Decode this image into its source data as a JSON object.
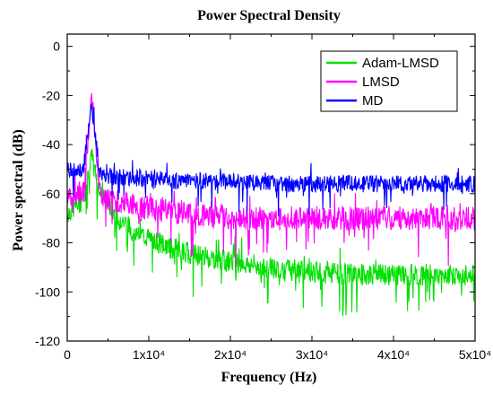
{
  "chart_data": {
    "type": "line",
    "title": "Power Spectral Density",
    "xlabel": "Frequency (Hz)",
    "ylabel": "Power spectral (dB)",
    "xlim": [
      0,
      50000
    ],
    "ylim": [
      -120,
      5
    ],
    "x_ticks": [
      0,
      10000,
      20000,
      30000,
      40000,
      50000
    ],
    "x_tick_labels": [
      "0",
      "1x10⁴",
      "2x10⁴",
      "3x10⁴",
      "4x10⁴",
      "5x10⁴"
    ],
    "y_ticks": [
      0,
      -20,
      -40,
      -60,
      -80,
      -100,
      -120
    ],
    "y_tick_labels": [
      "0",
      "-20",
      "-40",
      "-60",
      "-80",
      "-100",
      "-120"
    ],
    "legend_position": "top-right",
    "series": [
      {
        "name": "Adam-LMSD",
        "color": "#00e000",
        "x": [
          0,
          1000,
          2000,
          3000,
          4000,
          5000,
          6000,
          8000,
          10000,
          12500,
          15000,
          20000,
          25000,
          30000,
          35000,
          40000,
          45000,
          50000
        ],
        "values": [
          -68,
          -65,
          -62,
          -45,
          -60,
          -64,
          -68,
          -75,
          -78,
          -82,
          -84,
          -88,
          -90,
          -92,
          -93,
          -93,
          -93,
          -93
        ]
      },
      {
        "name": "LMSD",
        "color": "#ff00ff",
        "x": [
          0,
          1000,
          2000,
          3000,
          4000,
          5000,
          10000,
          15000,
          20000,
          25000,
          30000,
          35000,
          40000,
          45000,
          50000
        ],
        "values": [
          -62,
          -60,
          -60,
          -19,
          -60,
          -62,
          -66,
          -68,
          -70,
          -70,
          -70,
          -70,
          -70,
          -70,
          -70
        ]
      },
      {
        "name": "MD",
        "color": "#0000ff",
        "x": [
          0,
          1000,
          2000,
          3000,
          4000,
          5000,
          10000,
          15000,
          20000,
          25000,
          30000,
          35000,
          40000,
          45000,
          50000
        ],
        "values": [
          -50,
          -50,
          -50,
          -24,
          -52,
          -53,
          -54,
          -55,
          -55,
          -56,
          -56,
          -56,
          -56,
          -56,
          -56
        ]
      }
    ]
  }
}
